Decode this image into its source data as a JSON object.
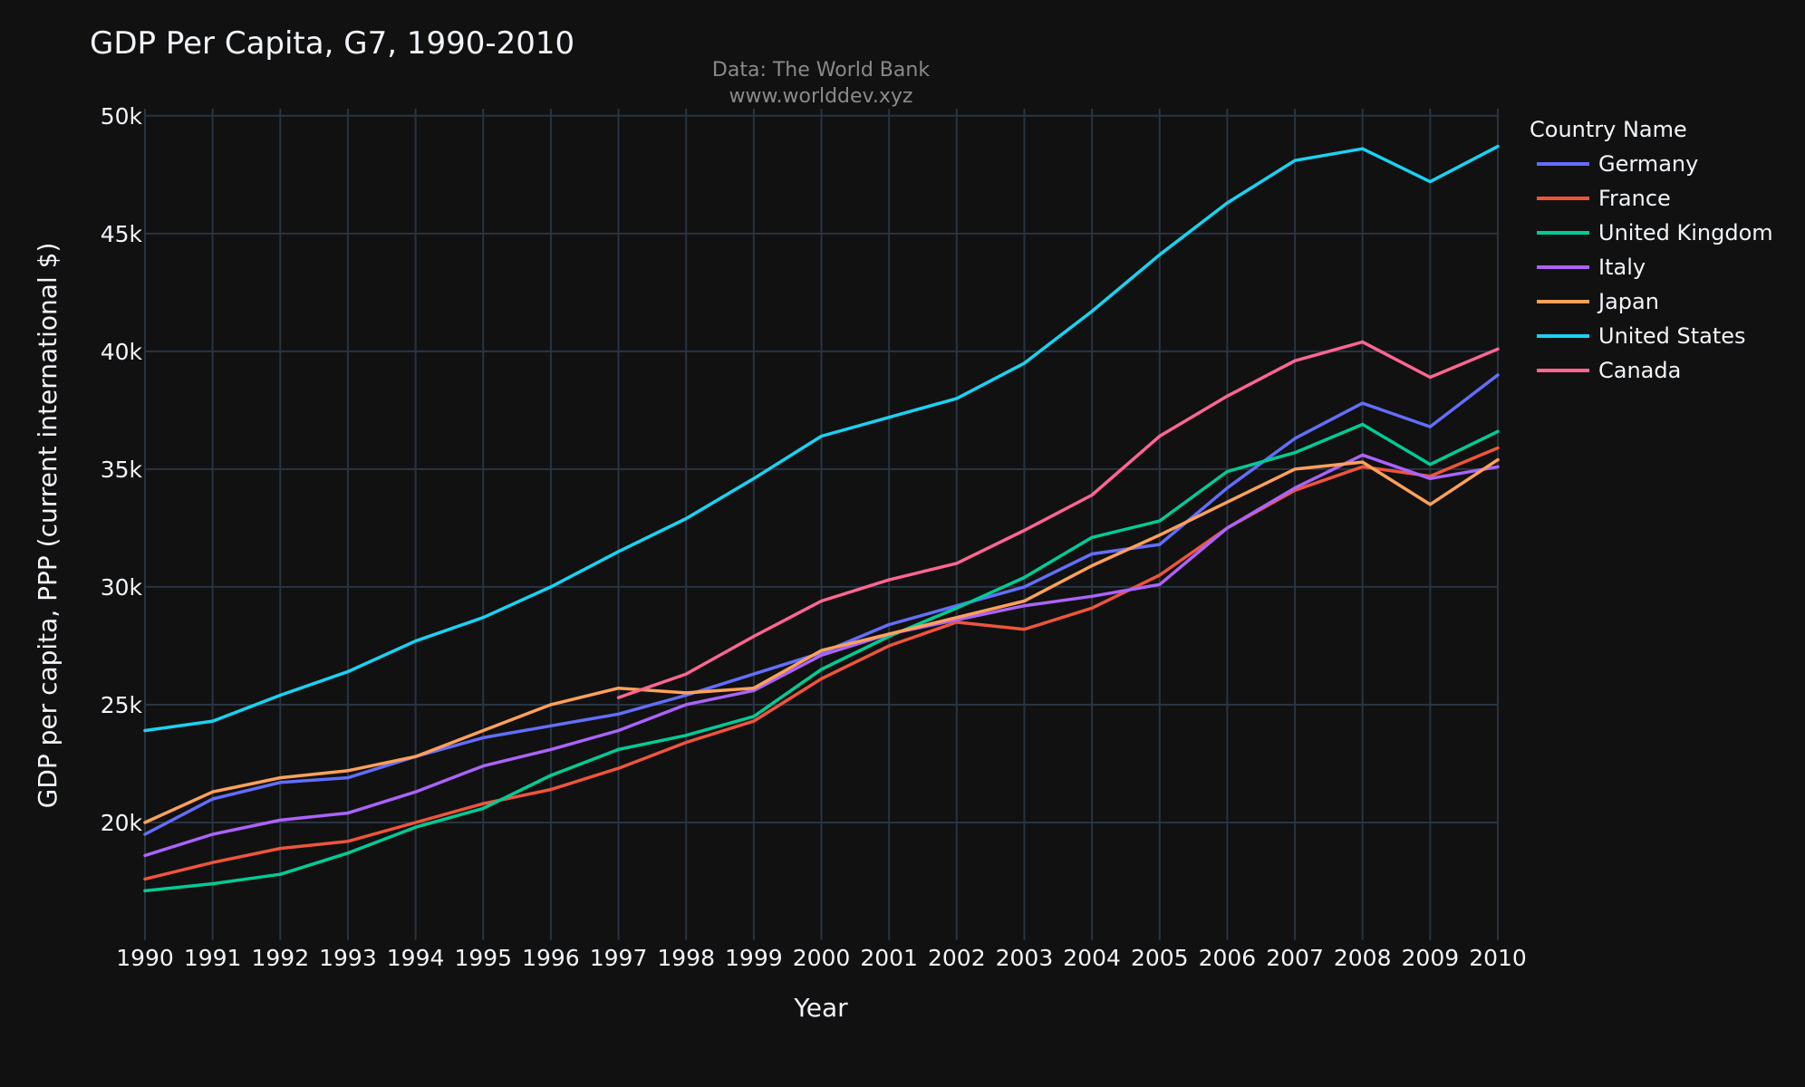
{
  "chart_data": {
    "type": "line",
    "title": "GDP Per Capita, G7, 1990-2010",
    "subtitle_lines": [
      "Data: The World Bank",
      "www.worlddev.xyz"
    ],
    "xlabel": "Year",
    "ylabel": "GDP per capita, PPP (current international $)",
    "xlim": [
      1990,
      2010
    ],
    "ylim": [
      15000,
      50300
    ],
    "x_ticks": [
      1990,
      1991,
      1992,
      1993,
      1994,
      1995,
      1996,
      1997,
      1998,
      1999,
      2000,
      2001,
      2002,
      2003,
      2004,
      2005,
      2006,
      2007,
      2008,
      2009,
      2010
    ],
    "y_ticks": [
      {
        "value": 20000,
        "label": "20k"
      },
      {
        "value": 25000,
        "label": "25k"
      },
      {
        "value": 30000,
        "label": "30k"
      },
      {
        "value": 35000,
        "label": "35k"
      },
      {
        "value": 40000,
        "label": "40k"
      },
      {
        "value": 45000,
        "label": "45k"
      },
      {
        "value": 50000,
        "label": "50k"
      }
    ],
    "grid": true,
    "legend": {
      "title": "Country Name",
      "position": "right"
    },
    "colors": {
      "background": "#111111",
      "grid": "#283442",
      "text": "#f2f5fa",
      "subtitle": "#8a8a8a"
    },
    "series": [
      {
        "name": "Germany",
        "color": "#636efa",
        "x": [
          1990,
          1991,
          1992,
          1993,
          1994,
          1995,
          1996,
          1997,
          1998,
          1999,
          2000,
          2001,
          2002,
          2003,
          2004,
          2005,
          2006,
          2007,
          2008,
          2009,
          2010
        ],
        "values": [
          19500,
          21000,
          21700,
          21900,
          22800,
          23600,
          24100,
          24600,
          25400,
          26300,
          27200,
          28400,
          29200,
          30000,
          31400,
          31800,
          34200,
          36300,
          37800,
          36800,
          39000
        ]
      },
      {
        "name": "France",
        "color": "#ef553b",
        "x": [
          1990,
          1991,
          1992,
          1993,
          1994,
          1995,
          1996,
          1997,
          1998,
          1999,
          2000,
          2001,
          2002,
          2003,
          2004,
          2005,
          2006,
          2007,
          2008,
          2009,
          2010
        ],
        "values": [
          17600,
          18300,
          18900,
          19200,
          20000,
          20800,
          21400,
          22300,
          23400,
          24300,
          26100,
          27500,
          28500,
          28200,
          29100,
          30500,
          32500,
          34100,
          35100,
          34700,
          35900
        ]
      },
      {
        "name": "United Kingdom",
        "color": "#00cc96",
        "x": [
          1990,
          1991,
          1992,
          1993,
          1994,
          1995,
          1996,
          1997,
          1998,
          1999,
          2000,
          2001,
          2002,
          2003,
          2004,
          2005,
          2006,
          2007,
          2008,
          2009,
          2010
        ],
        "values": [
          17100,
          17400,
          17800,
          18700,
          19800,
          20600,
          22000,
          23100,
          23700,
          24500,
          26500,
          27900,
          29100,
          30400,
          32100,
          32800,
          34900,
          35700,
          36900,
          35200,
          36600
        ]
      },
      {
        "name": "Italy",
        "color": "#ab63fa",
        "x": [
          1990,
          1991,
          1992,
          1993,
          1994,
          1995,
          1996,
          1997,
          1998,
          1999,
          2000,
          2001,
          2002,
          2003,
          2004,
          2005,
          2006,
          2007,
          2008,
          2009,
          2010
        ],
        "values": [
          18600,
          19500,
          20100,
          20400,
          21300,
          22400,
          23100,
          23900,
          25000,
          25600,
          27100,
          28000,
          28600,
          29200,
          29600,
          30100,
          32500,
          34200,
          35600,
          34600,
          35100
        ]
      },
      {
        "name": "Japan",
        "color": "#ffa15a",
        "x": [
          1990,
          1991,
          1992,
          1993,
          1994,
          1995,
          1996,
          1997,
          1998,
          1999,
          2000,
          2001,
          2002,
          2003,
          2004,
          2005,
          2006,
          2007,
          2008,
          2009,
          2010
        ],
        "values": [
          20000,
          21300,
          21900,
          22200,
          22800,
          23900,
          25000,
          25700,
          25500,
          25700,
          27300,
          28000,
          28700,
          29400,
          30900,
          32200,
          33600,
          35000,
          35300,
          33500,
          35400
        ]
      },
      {
        "name": "United States",
        "color": "#19d3f3",
        "x": [
          1990,
          1991,
          1992,
          1993,
          1994,
          1995,
          1996,
          1997,
          1998,
          1999,
          2000,
          2001,
          2002,
          2003,
          2004,
          2005,
          2006,
          2007,
          2008,
          2009,
          2010
        ],
        "values": [
          23900,
          24300,
          25400,
          26400,
          27700,
          28700,
          30000,
          31500,
          32900,
          34600,
          36400,
          37200,
          38000,
          39500,
          41700,
          44100,
          46300,
          48100,
          48600,
          47200,
          48700
        ]
      },
      {
        "name": "Canada",
        "color": "#ff6692",
        "x": [
          1997,
          1998,
          1999,
          2000,
          2001,
          2002,
          2003,
          2004,
          2005,
          2006,
          2007,
          2008,
          2009,
          2010
        ],
        "values": [
          25300,
          26300,
          27900,
          29400,
          30300,
          31000,
          32400,
          33900,
          36400,
          38100,
          39600,
          40400,
          38900,
          40100
        ]
      }
    ]
  }
}
